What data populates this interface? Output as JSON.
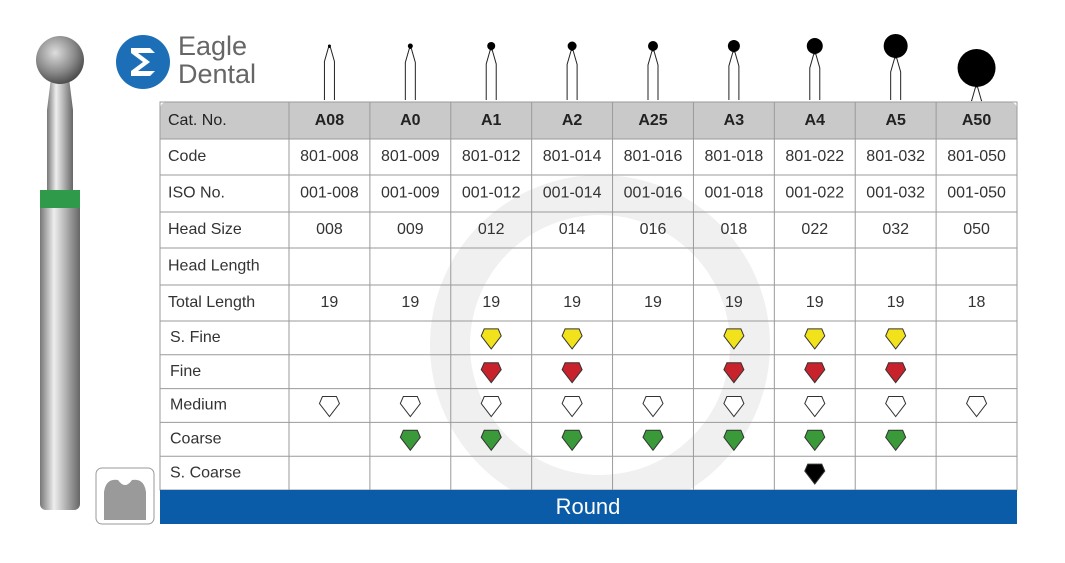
{
  "brand": {
    "line1": "Eagle",
    "line2": "Dental"
  },
  "table": {
    "header": [
      "Cat. No.",
      "A08",
      "A0",
      "A1",
      "A2",
      "A25",
      "A3",
      "A4",
      "A5",
      "A50"
    ],
    "rows": [
      [
        "Code",
        "801-008",
        "801-009",
        "801-012",
        "801-014",
        "801-016",
        "801-018",
        "801-022",
        "801-032",
        "801-050"
      ],
      [
        "ISO No.",
        "001-008",
        "001-009",
        "001-012",
        "001-014",
        "001-016",
        "001-018",
        "001-022",
        "001-032",
        "001-050"
      ],
      [
        "Head Size",
        "008",
        "009",
        "012",
        "014",
        "016",
        "018",
        "022",
        "032",
        "050"
      ],
      [
        "Head Length",
        null,
        null,
        null,
        null,
        null,
        null,
        null,
        null,
        null
      ],
      [
        "Total Length",
        "19",
        "19",
        "19",
        "19",
        "19",
        "19",
        "19",
        "19",
        "18"
      ]
    ],
    "grits": [
      {
        "label": "S. Fine",
        "color": "#f2e21b",
        "available": [
          false,
          false,
          true,
          true,
          false,
          true,
          true,
          true,
          false
        ]
      },
      {
        "label": "Fine",
        "color": "#c8232c",
        "available": [
          false,
          false,
          true,
          true,
          false,
          true,
          true,
          true,
          false
        ]
      },
      {
        "label": "Medium",
        "color": "#ffffff",
        "available": [
          true,
          true,
          true,
          true,
          true,
          true,
          true,
          true,
          true
        ]
      },
      {
        "label": "Coarse",
        "color": "#3a9a3a",
        "available": [
          false,
          true,
          true,
          true,
          true,
          true,
          true,
          true,
          false
        ]
      },
      {
        "label": "S. Coarse",
        "color": "#000000",
        "available": [
          false,
          false,
          false,
          false,
          false,
          false,
          true,
          false,
          false
        ]
      }
    ]
  },
  "footer": "Round"
}
